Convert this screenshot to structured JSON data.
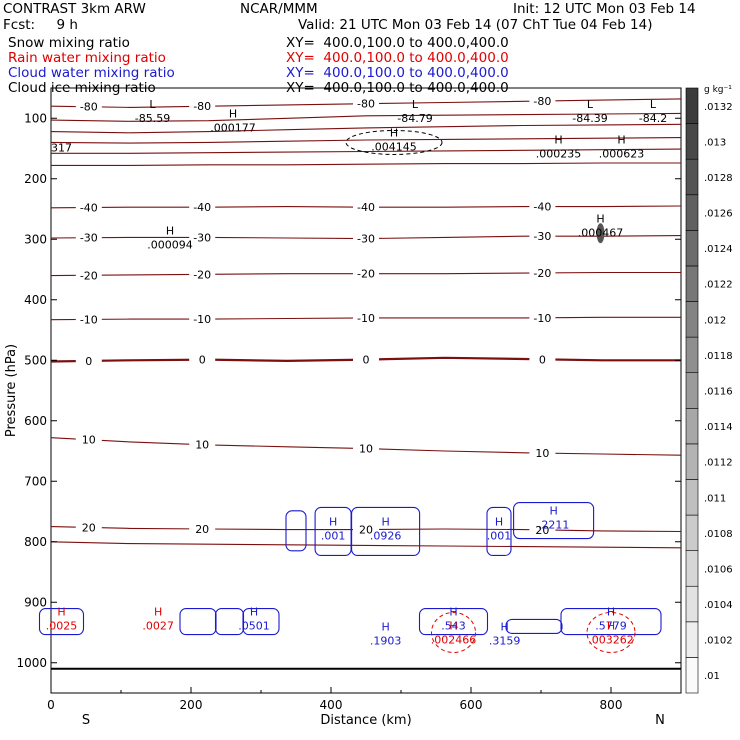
{
  "header": {
    "title": "CONTRAST  3km ARW",
    "center": "NCAR/MMM",
    "init": "Init: 12 UTC Mon 03 Feb 14",
    "fcst": "Fcst:     9 h",
    "valid": "Valid: 21 UTC Mon 03 Feb 14 (07 ChT Tue 04 Feb 14)"
  },
  "fields": [
    {
      "name": "Snow mixing ratio",
      "xy": "XY=  400.0,100.0 to 400.0,400.0",
      "color": "#000000"
    },
    {
      "name": "Rain water mixing ratio",
      "xy": "XY=  400.0,100.0 to 400.0,400.0",
      "color": "#e00000"
    },
    {
      "name": "Cloud water mixing ratio",
      "xy": "XY=  400.0,100.0 to 400.0,400.0",
      "color": "#1a1ad0"
    },
    {
      "name": "Cloud ice mixing ratio",
      "xy": "XY=  400.0,100.0 to 400.0,400.0",
      "color": "#000000"
    }
  ],
  "chart_data": {
    "type": "cross-section contour",
    "xlabel": "Distance (km)",
    "ylabel": "Pressure (hPa)",
    "xlim": [
      0,
      900
    ],
    "ylim": [
      1050,
      50
    ],
    "x_ticks": [
      "0",
      "200",
      "400",
      "600",
      "800"
    ],
    "y_ticks": [
      "100",
      "200",
      "300",
      "400",
      "500",
      "600",
      "700",
      "800",
      "900",
      "1000"
    ],
    "x_end_labels": {
      "left": "S",
      "right": "N"
    },
    "colors": {
      "temperature": "#7a1010",
      "cloud_water": "#1a1ad0",
      "rain": "#e00000",
      "ice": "#000000"
    },
    "temperature_contours": [
      {
        "label": "-80",
        "p": [
          80,
          82,
          80,
          78,
          76,
          74,
          72,
          70,
          68
        ]
      },
      {
        "label": "",
        "p": [
          103,
          105,
          104,
          100,
          96,
          95,
          94,
          93,
          92
        ]
      },
      {
        "label": "",
        "p": [
          122,
          124,
          122,
          119,
          116,
          114,
          112,
          111,
          110
        ]
      },
      {
        "label": "",
        "p": [
          140,
          141,
          140,
          138,
          136,
          135,
          134,
          133,
          132
        ]
      },
      {
        "label": "",
        "p": [
          158,
          158,
          157,
          156,
          155,
          154,
          153,
          152,
          151
        ]
      },
      {
        "label": "",
        "p": [
          178,
          178,
          177,
          177,
          176,
          175,
          175,
          174,
          174
        ]
      },
      {
        "label": "-40",
        "p": [
          248,
          247,
          247,
          246,
          247,
          247,
          246,
          246,
          245
        ]
      },
      {
        "label": "-30",
        "p": [
          298,
          297,
          297,
          298,
          299,
          297,
          295,
          295,
          294
        ]
      },
      {
        "label": "-20",
        "p": [
          360,
          359,
          358,
          357,
          357,
          357,
          356,
          355,
          355
        ]
      },
      {
        "label": "-10",
        "p": [
          433,
          432,
          432,
          431,
          430,
          430,
          430,
          429,
          429
        ]
      },
      {
        "label": "0",
        "p": [
          502,
          500,
          499,
          501,
          499,
          496,
          498,
          500,
          500
        ]
      },
      {
        "label": "10",
        "p": [
          628,
          635,
          640,
          643,
          646,
          650,
          653,
          655,
          657
        ]
      },
      {
        "label": "20",
        "p": [
          775,
          778,
          779,
          780,
          780,
          779,
          780,
          782,
          783
        ]
      },
      {
        "label": "",
        "p": [
          800,
          803,
          804,
          805,
          806,
          807,
          808,
          809,
          810
        ]
      }
    ],
    "extra_labels": [
      "-85.59",
      "-84.79",
      "-84.39",
      "-84.2",
      "317"
    ],
    "extrema": [
      {
        "type": "L",
        "value": "-85.59",
        "x": 145,
        "p": 93
      },
      {
        "type": "L",
        "value": "-84.79",
        "x": 520,
        "p": 93
      },
      {
        "type": "L",
        "value": "-84.39",
        "x": 770,
        "p": 93
      },
      {
        "type": "L",
        "value": "-84.2",
        "x": 860,
        "p": 93
      },
      {
        "type": "H",
        "value": ".000177",
        "x": 260,
        "p": 109
      },
      {
        "type": "H",
        "value": ".004145",
        "x": 490,
        "p": 140
      },
      {
        "type": "H",
        "value": ".000235",
        "x": 725,
        "p": 152
      },
      {
        "type": "H",
        "value": ".000623",
        "x": 815,
        "p": 152
      },
      {
        "type": "H",
        "value": ".000094",
        "x": 170,
        "p": 302
      },
      {
        "type": "H",
        "value": ".000467",
        "x": 785,
        "p": 282
      },
      {
        "type": "H",
        "value": ".001",
        "x": 403,
        "p": 783
      },
      {
        "type": "H",
        "value": ".0926",
        "x": 478,
        "p": 783
      },
      {
        "type": "H",
        "value": ".001",
        "x": 640,
        "p": 783
      },
      {
        "type": "H",
        "value": ".2211",
        "x": 718,
        "p": 765
      },
      {
        "type": "H",
        "value": ".0025",
        "x": 15,
        "p": 932
      },
      {
        "type": "H",
        "value": ".0027",
        "x": 153,
        "p": 932
      },
      {
        "type": "H",
        "value": ".0501",
        "x": 290,
        "p": 932
      },
      {
        "type": "H",
        "value": ".1903",
        "x": 478,
        "p": 957
      },
      {
        "type": "H",
        "value": ".543",
        "x": 575,
        "p": 932
      },
      {
        "type": "H",
        "value": ".3159",
        "x": 648,
        "p": 957
      },
      {
        "type": "H",
        "value": ".5779",
        "x": 800,
        "p": 932
      },
      {
        "type": "H",
        "value": ".002466",
        "x": 575,
        "p": 955
      },
      {
        "type": "H",
        "value": ".003262",
        "x": 800,
        "p": 955
      }
    ],
    "colorbar": {
      "unit": "g kg⁻¹",
      "levels": [
        ".01",
        ".0102",
        ".0104",
        ".0106",
        ".0108",
        ".011",
        ".0112",
        ".0114",
        ".0116",
        ".0118",
        ".012",
        ".0122",
        ".0124",
        ".0126",
        ".0128",
        ".013",
        ".0132"
      ]
    }
  }
}
